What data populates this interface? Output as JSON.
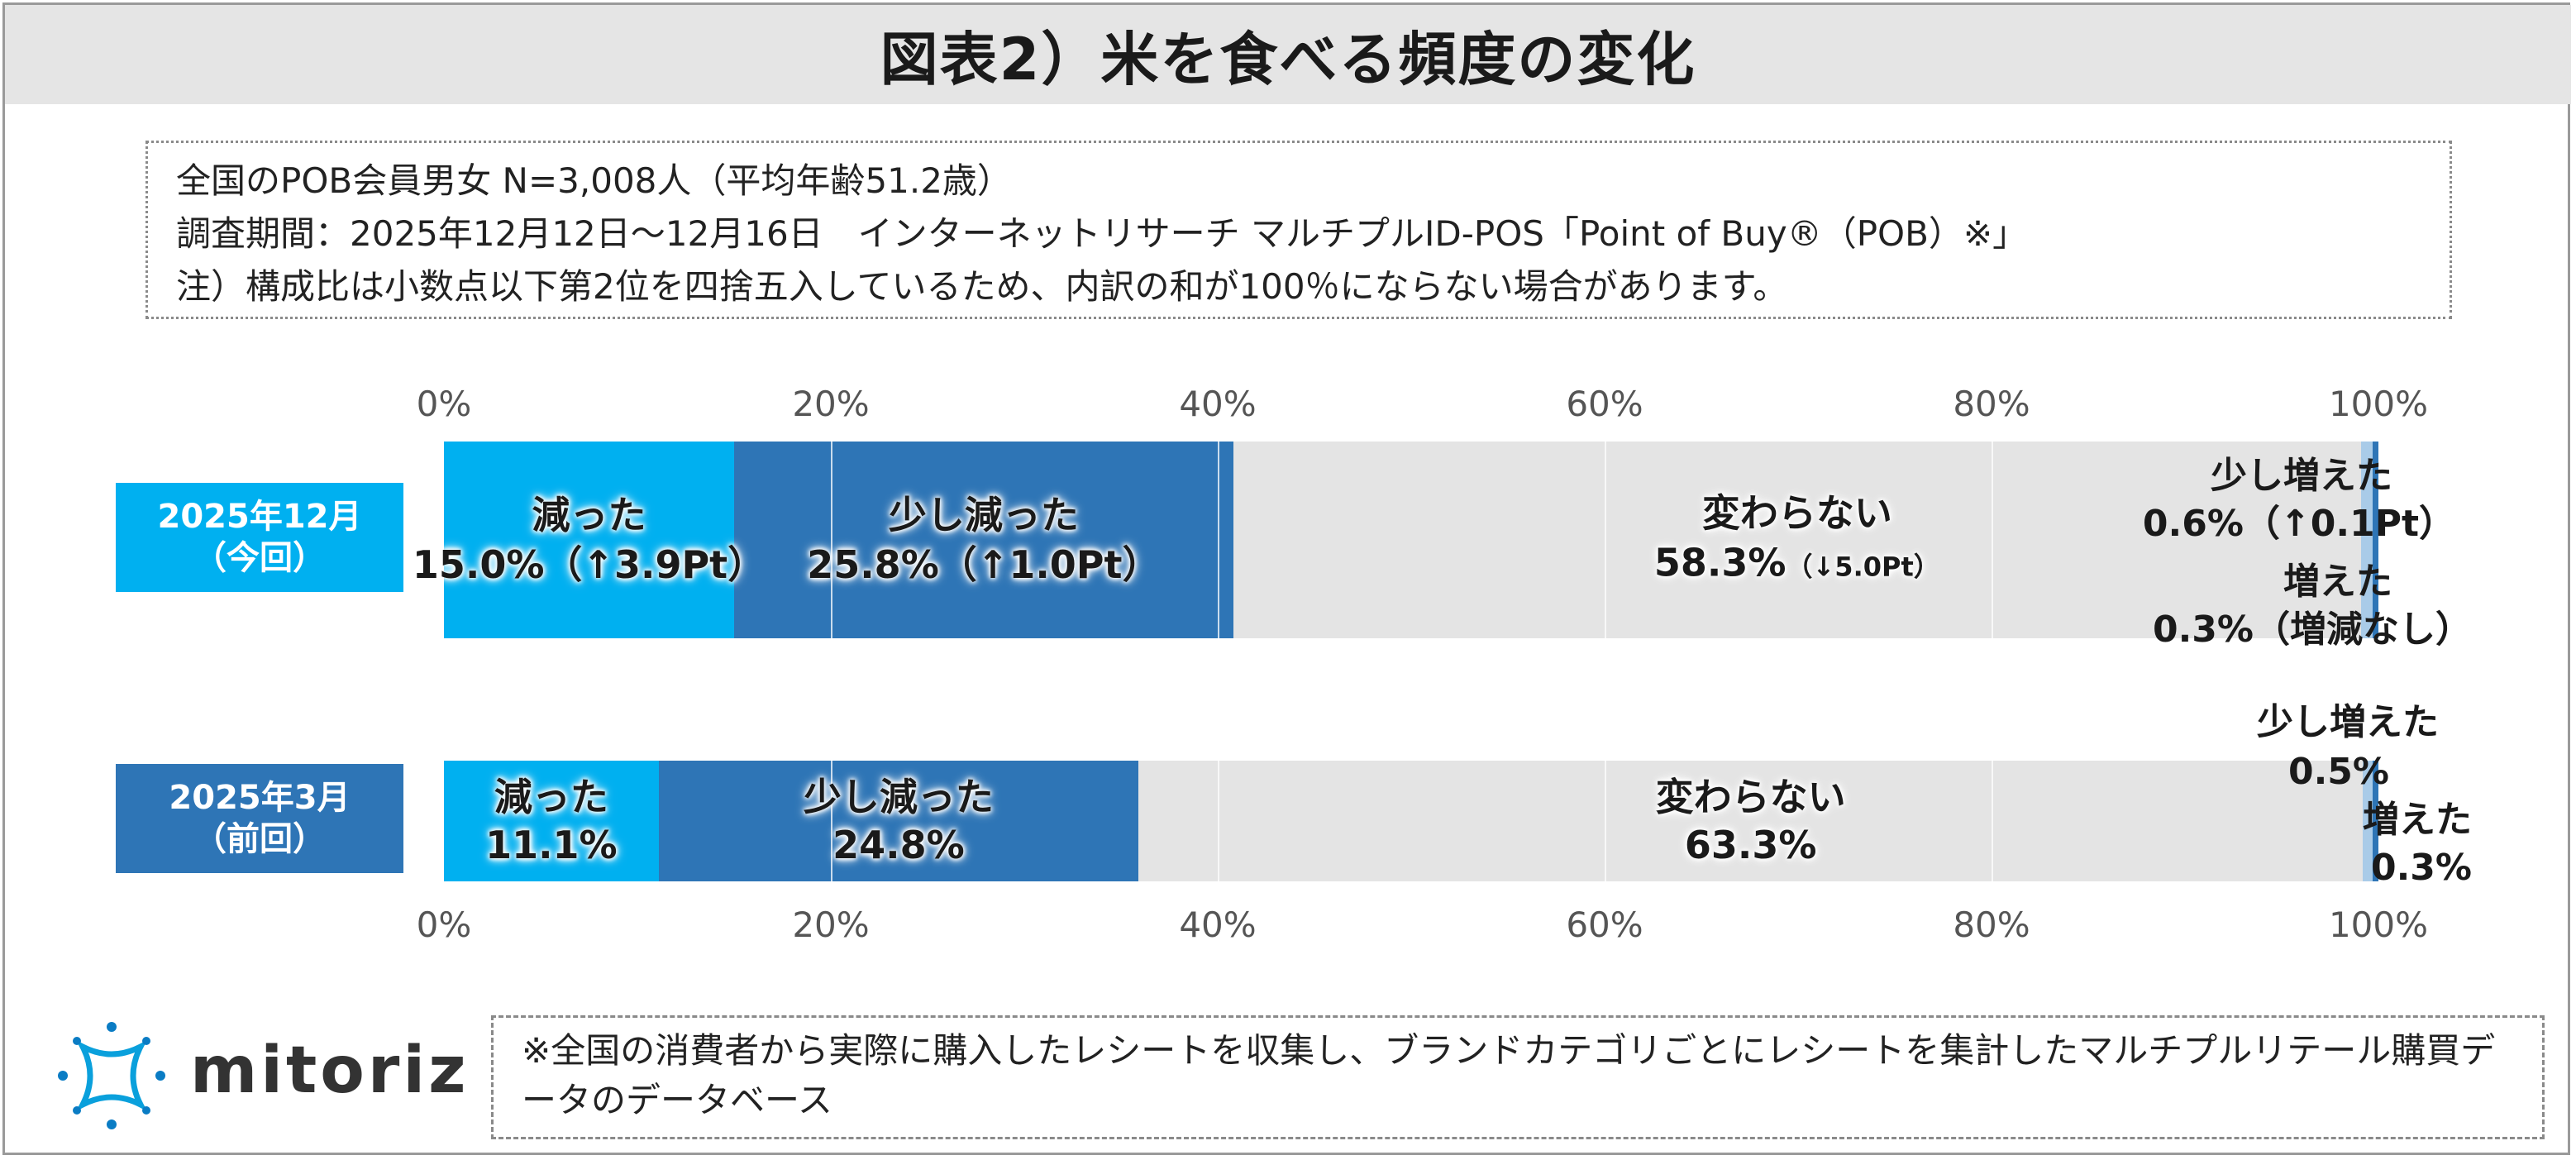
{
  "title": "図表2）米を食べる頻度の変化",
  "notes": [
    "全国のPOB会員男女 N=3,008人（平均年齢51.2歳）",
    "調査期間：2025年12月12日〜12月16日　インターネットリサーチ マルチプルID-POS「Point of Buy®（POB）※」",
    "注）構成比は小数点以下第2位を四捨五入しているため、内訳の和が100％にならない場合があります。"
  ],
  "chart_data": {
    "type": "bar",
    "orientation": "horizontal",
    "stacked": true,
    "xlim": [
      0,
      100
    ],
    "x_ticks": [
      "0%",
      "20%",
      "40%",
      "60%",
      "80%",
      "100%"
    ],
    "categories": [
      "2025年12月（今回）",
      "2025年3月（前回）"
    ],
    "series": [
      {
        "name": "減った",
        "values": [
          15.0,
          11.1
        ],
        "color": "#00b0f0"
      },
      {
        "name": "少し減った",
        "values": [
          25.8,
          24.8
        ],
        "color": "#2e75b6"
      },
      {
        "name": "変わらない",
        "values": [
          58.3,
          63.3
        ],
        "color": "#e4e4e4"
      },
      {
        "name": "少し増えた",
        "values": [
          0.6,
          0.5
        ],
        "color": "#a9cbe8"
      },
      {
        "name": "増えた",
        "values": [
          0.3,
          0.3
        ],
        "color": "#2e75b6"
      }
    ],
    "current_labels": {
      "decreased": {
        "name": "減った",
        "value": "15.0%（↑3.9Pt）"
      },
      "slightly_decreased": {
        "name": "少し減った",
        "value": "25.8%（↑1.0Pt）"
      },
      "unchanged": {
        "name": "変わらない",
        "value": "58.3%",
        "change": "（↓5.0Pt）"
      },
      "slightly_increased": {
        "name": "少し増えた",
        "value": "0.6%（↑0.1Pt）"
      },
      "increased": {
        "name": "増えた",
        "value": "0.3%（増減なし）"
      }
    },
    "previous_labels": {
      "decreased": {
        "name": "減った",
        "value": "11.1%"
      },
      "slightly_decreased": {
        "name": "少し減った",
        "value": "24.8%"
      },
      "unchanged": {
        "name": "変わらない",
        "value": "63.3%"
      },
      "slightly_increased": {
        "name": "少し増えた",
        "value": "0.5%"
      },
      "increased": {
        "name": "増えた",
        "value": "0.3%"
      }
    }
  },
  "row_labels": {
    "current": {
      "line1": "2025年12月",
      "line2": "（今回）"
    },
    "previous": {
      "line1": "2025年3月",
      "line2": "（前回）"
    }
  },
  "footer": "※全国の消費者から実際に購入したレシートを収集し、ブランドカテゴリごとにレシートを集計したマルチプルリテール購買データのデータベース",
  "logo_text": "mitoriz"
}
